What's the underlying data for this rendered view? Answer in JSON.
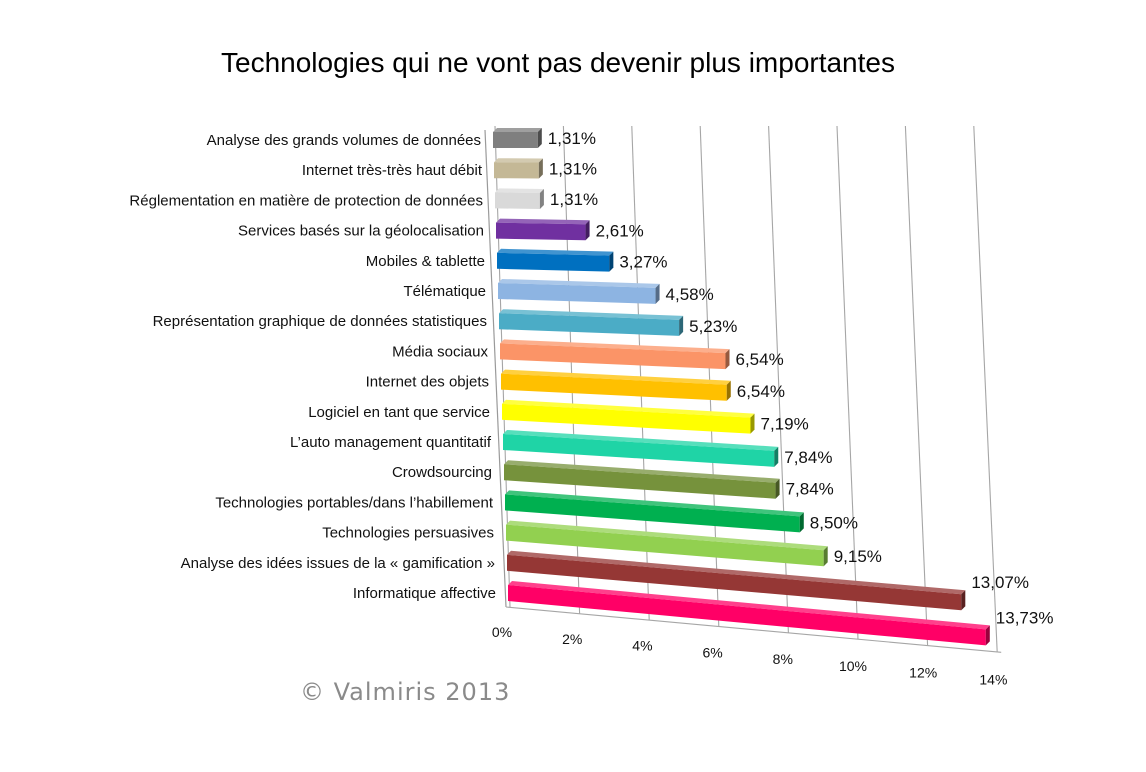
{
  "copyright": "© Valmiris 2013",
  "chart_data": {
    "type": "bar",
    "orientation": "horizontal",
    "style": "3d",
    "title": "Technologies qui ne vont pas devenir plus importantes",
    "categories": [
      "Analyse des grands volumes de données",
      "Internet très-très haut débit",
      "Réglementation en matière de protection de données",
      "Services basés sur la géolocalisation",
      "Mobiles & tablette",
      "Télématique",
      "Représentation graphique de données statistiques",
      "Média sociaux",
      "Internet des objets",
      "Logiciel en tant que service",
      "L’auto management quantitatif",
      "Crowdsourcing",
      "Technologies portables/dans l’habillement",
      "Technologies persuasives",
      "Analyse des idées issues de la « gamification »",
      "Informatique affective"
    ],
    "values": [
      1.31,
      1.31,
      1.31,
      2.61,
      3.27,
      4.58,
      5.23,
      6.54,
      6.54,
      7.19,
      7.84,
      7.84,
      8.5,
      9.15,
      13.07,
      13.73
    ],
    "value_labels": [
      "1,31%",
      "1,31%",
      "1,31%",
      "2,61%",
      "3,27%",
      "4,58%",
      "5,23%",
      "6,54%",
      "6,54%",
      "7,19%",
      "7,84%",
      "7,84%",
      "8,50%",
      "9,15%",
      "13,07%",
      "13,73%"
    ],
    "colors": [
      "#7f7f7f",
      "#c4b896",
      "#d9d9d9",
      "#7030a0",
      "#0070c0",
      "#8db4e2",
      "#4bacc6",
      "#fb9467",
      "#ffc000",
      "#ffff00",
      "#1fd4a6",
      "#76923c",
      "#00b050",
      "#92d050",
      "#953735",
      "#ff0066"
    ],
    "x_ticks": [
      "0%",
      "2%",
      "4%",
      "6%",
      "8%",
      "10%",
      "12%",
      "14%"
    ],
    "xlim": [
      0,
      14
    ],
    "grid": true,
    "legend": "none"
  }
}
